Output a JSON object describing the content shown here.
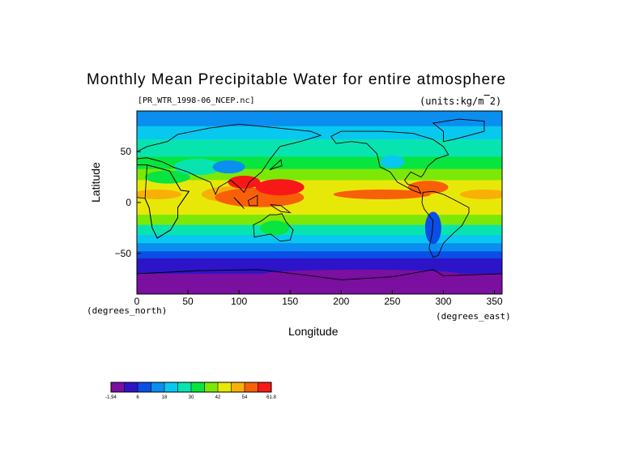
{
  "title": "Monthly Mean Precipitable Water for entire atmosphere",
  "file_label": "[PR_WTR_1998-06_NCEP.nc]",
  "units_label": "(units:kg/m^2)",
  "axes": {
    "xlabel": "Longitude",
    "ylabel": "Latitude",
    "x_unit_label": "(degrees_east)",
    "y_unit_label": "(degrees_north)",
    "x_ticks": [
      "0",
      "50",
      "100",
      "150",
      "200",
      "250",
      "300",
      "350"
    ],
    "y_ticks": [
      "50",
      "0",
      "−50"
    ]
  },
  "map": {
    "projection": "lon-lat cylindrical",
    "lon_range": [
      0,
      357.5
    ],
    "lat_range": [
      -90,
      90
    ],
    "grid": false
  },
  "colorbar": {
    "labels": [
      "-1.94",
      "6",
      "18",
      "30",
      "42",
      "54",
      "61.8"
    ],
    "colors": [
      "#7a0fa0",
      "#2e14c8",
      "#0a4ee6",
      "#0a8ef0",
      "#08c8f0",
      "#08e4b0",
      "#08e440",
      "#7ce808",
      "#e8e808",
      "#f8b008",
      "#f86008",
      "#f81818"
    ]
  },
  "colors": {
    "very_low": "#7a0fa0",
    "low": "#2e14c8",
    "mid_low": "#0a8ef0",
    "mid": "#08e440",
    "mid_high": "#e8e808",
    "high": "#f86008",
    "very_high": "#f81818"
  }
}
